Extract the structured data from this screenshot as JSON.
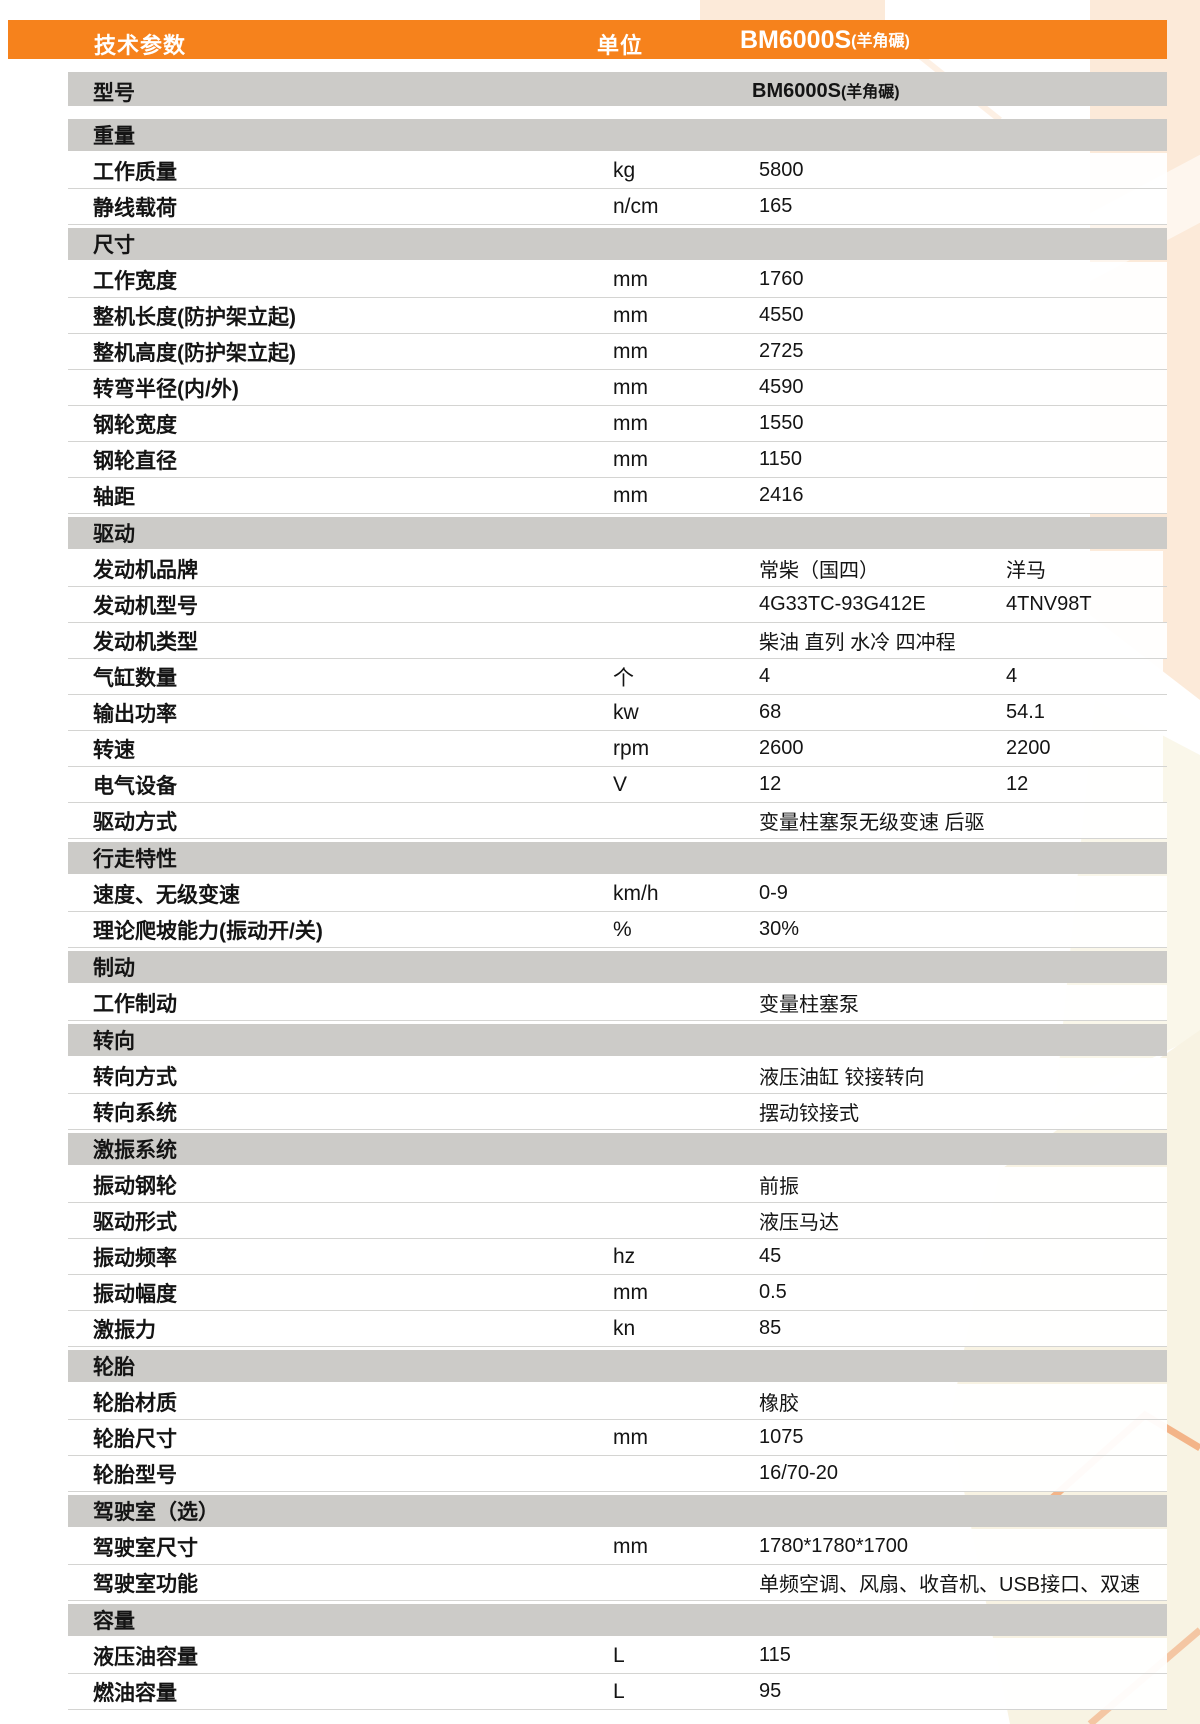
{
  "header": {
    "title": "技术参数",
    "unit_label": "单位",
    "model": "BM6000S",
    "variant": "(羊角碾)"
  },
  "model_row": {
    "label": "型号",
    "model": "BM6000S",
    "variant": "(羊角碾)"
  },
  "colors": {
    "accent": "#F6821C",
    "section_bg": "#CCCBC8",
    "row_border": "#D4D4D2"
  },
  "sections": [
    {
      "title": "重量",
      "rows": [
        {
          "name": "工作质量",
          "unit": "kg",
          "value": "5800"
        },
        {
          "name": "静线载荷",
          "unit": "n/cm",
          "value": "165"
        }
      ]
    },
    {
      "title": "尺寸",
      "rows": [
        {
          "name": "工作宽度",
          "unit": "mm",
          "value": "1760"
        },
        {
          "name": "整机长度(防护架立起)",
          "unit": "mm",
          "value": "4550"
        },
        {
          "name": "整机高度(防护架立起)",
          "unit": "mm",
          "value": "2725"
        },
        {
          "name": "转弯半径(内/外)",
          "unit": "mm",
          "value": "4590"
        },
        {
          "name": "钢轮宽度",
          "unit": "mm",
          "value": "1550"
        },
        {
          "name": "钢轮直径",
          "unit": "mm",
          "value": "1150"
        },
        {
          "name": "轴距",
          "unit": "mm",
          "value": "2416"
        }
      ]
    },
    {
      "title": "驱动",
      "rows": [
        {
          "name": "发动机品牌",
          "unit": "",
          "value": "常柴（国四）",
          "value2": "洋马"
        },
        {
          "name": "发动机型号",
          "unit": "",
          "value": "4G33TC-93G412E",
          "value2": "4TNV98T"
        },
        {
          "name": "发动机类型",
          "unit": "",
          "value": "柴油 直列 水冷 四冲程"
        },
        {
          "name": "气缸数量",
          "unit": "个",
          "value": "4",
          "value2": "4"
        },
        {
          "name": "输出功率",
          "unit": "kw",
          "value": "68",
          "value2": "54.1"
        },
        {
          "name": "转速",
          "unit": "rpm",
          "value": "2600",
          "value2": "2200"
        },
        {
          "name": "电气设备",
          "unit": "V",
          "value": "12",
          "value2": "12"
        },
        {
          "name": "驱动方式",
          "unit": "",
          "value": "变量柱塞泵无级变速  后驱"
        }
      ]
    },
    {
      "title": "行走特性",
      "rows": [
        {
          "name": "速度、无级变速",
          "unit": "km/h",
          "value": "0-9"
        },
        {
          "name": "理论爬坡能力(振动开/关)",
          "unit": "%",
          "value": "30%"
        }
      ]
    },
    {
      "title": "制动",
      "rows": [
        {
          "name": "工作制动",
          "unit": "",
          "value": "变量柱塞泵"
        }
      ]
    },
    {
      "title": "转向",
      "rows": [
        {
          "name": "转向方式",
          "unit": "",
          "value": "液压油缸 铰接转向"
        },
        {
          "name": "转向系统",
          "unit": "",
          "value": "摆动铰接式"
        }
      ]
    },
    {
      "title": "激振系统",
      "rows": [
        {
          "name": "振动钢轮",
          "unit": "",
          "value": "前振"
        },
        {
          "name": "驱动形式",
          "unit": "",
          "value": "液压马达"
        },
        {
          "name": "振动频率",
          "unit": "hz",
          "value": "45"
        },
        {
          "name": "振动幅度",
          "unit": "mm",
          "value": "0.5"
        },
        {
          "name": "激振力",
          "unit": "kn",
          "value": "85"
        }
      ]
    },
    {
      "title": "轮胎",
      "rows": [
        {
          "name": "轮胎材质",
          "unit": "",
          "value": "橡胶"
        },
        {
          "name": "轮胎尺寸",
          "unit": "mm",
          "value": "1075"
        },
        {
          "name": "轮胎型号",
          "unit": "",
          "value": "16/70-20"
        }
      ]
    },
    {
      "title": "驾驶室（选）",
      "rows": [
        {
          "name": "驾驶室尺寸",
          "unit": "mm",
          "value": "1780*1780*1700"
        },
        {
          "name": "驾驶室功能",
          "unit": "",
          "value": "单频空调、风扇、收音机、USB接口、双速"
        }
      ]
    },
    {
      "title": "容量",
      "rows": [
        {
          "name": "液压油容量",
          "unit": "L",
          "value": "115"
        },
        {
          "name": "燃油容量",
          "unit": "L",
          "value": "95"
        }
      ]
    }
  ]
}
